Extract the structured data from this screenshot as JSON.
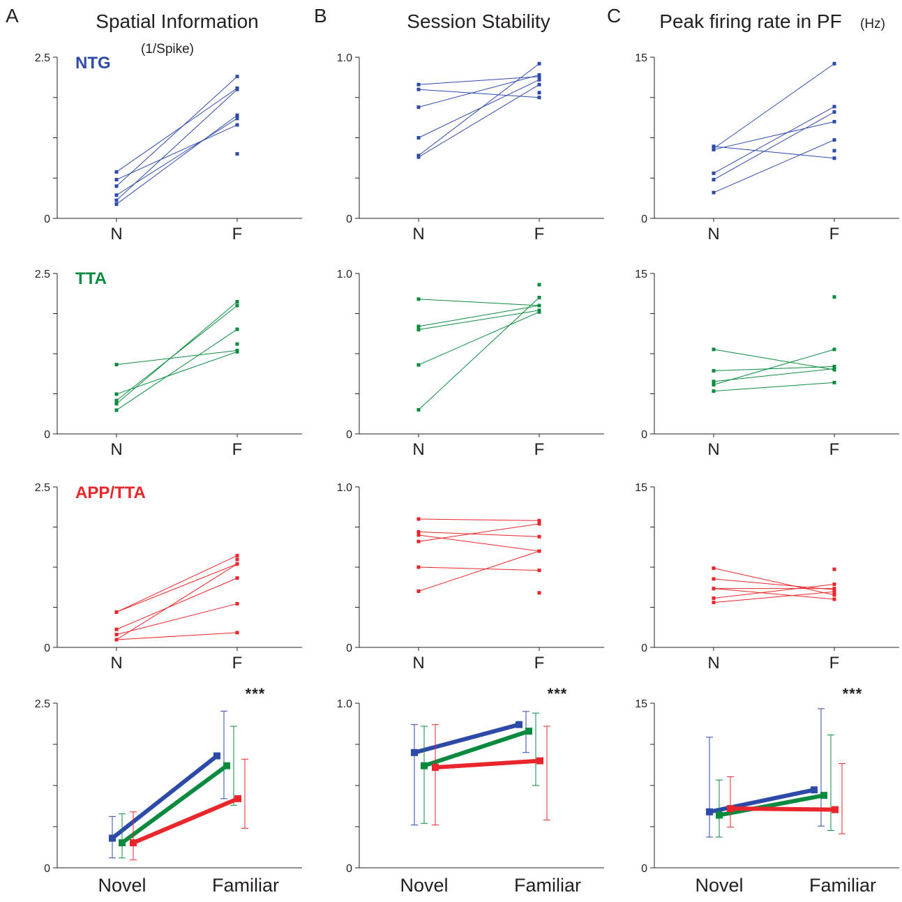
{
  "columns": [
    {
      "letter": "A",
      "title": "Spatial Information",
      "subtitle": "(1/Spike)"
    },
    {
      "letter": "B",
      "title": "Session Stability",
      "subtitle": ""
    },
    {
      "letter": "C",
      "title": "Peak firing rate in PF",
      "subtitle": "(Hz)"
    }
  ],
  "colors": {
    "NTG": "#2e4aa8",
    "TTA": "#0a8a3e",
    "APP/TTA": "#e8262b"
  },
  "group_labels": [
    "NTG",
    "TTA",
    "APP/TTA"
  ],
  "significance_label": "***",
  "chart_data": [
    {
      "type": "line",
      "column": "A",
      "group": "NTG",
      "color": "#2e4aa8",
      "categories": [
        "N",
        "F"
      ],
      "ylim": [
        0,
        2.5
      ],
      "yticks": [
        "0",
        "2.5"
      ],
      "pairs": [
        [
          0.22,
          1.6
        ],
        [
          0.28,
          2.0
        ],
        [
          0.36,
          1.55
        ],
        [
          0.5,
          2.2
        ],
        [
          0.6,
          1.45
        ],
        [
          0.72,
          2.02
        ]
      ],
      "unpaired_F": [
        1.0
      ]
    },
    {
      "type": "line",
      "column": "B",
      "group": "NTG",
      "color": "#2e4aa8",
      "categories": [
        "N",
        "F"
      ],
      "ylim": [
        0,
        1.0
      ],
      "yticks": [
        "0",
        "1.0"
      ],
      "pairs": [
        [
          0.38,
          0.83
        ],
        [
          0.39,
          0.96
        ],
        [
          0.5,
          0.86
        ],
        [
          0.69,
          0.89
        ],
        [
          0.8,
          0.75
        ],
        [
          0.83,
          0.88
        ]
      ],
      "unpaired_F": [
        0.78
      ]
    },
    {
      "type": "line",
      "column": "C",
      "group": "NTG",
      "color": "#2e4aa8",
      "categories": [
        "N",
        "F"
      ],
      "ylim": [
        0,
        15
      ],
      "yticks": [
        "0",
        "15"
      ],
      "pairs": [
        [
          2.4,
          7.3
        ],
        [
          3.6,
          9.9
        ],
        [
          4.2,
          10.4
        ],
        [
          6.5,
          14.4
        ],
        [
          6.7,
          5.6
        ],
        [
          6.4,
          9.0
        ]
      ],
      "unpaired_F": [
        6.3
      ]
    },
    {
      "type": "line",
      "column": "A",
      "group": "TTA",
      "color": "#0a8a3e",
      "categories": [
        "N",
        "F"
      ],
      "ylim": [
        0,
        2.5
      ],
      "yticks": [
        "0",
        "2.5"
      ],
      "pairs": [
        [
          0.37,
          1.63
        ],
        [
          0.47,
          2.06
        ],
        [
          0.52,
          2.0
        ],
        [
          0.62,
          1.28
        ],
        [
          1.08,
          1.3
        ]
      ],
      "unpaired_F": [
        1.4
      ]
    },
    {
      "type": "line",
      "column": "B",
      "group": "TTA",
      "color": "#0a8a3e",
      "categories": [
        "N",
        "F"
      ],
      "ylim": [
        0,
        1.0
      ],
      "yticks": [
        "0",
        "1.0"
      ],
      "pairs": [
        [
          0.15,
          0.85
        ],
        [
          0.43,
          0.76
        ],
        [
          0.65,
          0.77
        ],
        [
          0.67,
          0.8
        ],
        [
          0.84,
          0.8
        ]
      ],
      "unpaired_F": [
        0.93
      ]
    },
    {
      "type": "line",
      "column": "C",
      "group": "TTA",
      "color": "#0a8a3e",
      "categories": [
        "N",
        "F"
      ],
      "ylim": [
        0,
        15
      ],
      "yticks": [
        "0",
        "15"
      ],
      "pairs": [
        [
          4.0,
          4.8
        ],
        [
          4.6,
          7.9
        ],
        [
          4.9,
          6.1
        ],
        [
          5.9,
          6.3
        ],
        [
          7.9,
          6.0
        ]
      ],
      "unpaired_F": [
        12.8
      ]
    },
    {
      "type": "line",
      "column": "A",
      "group": "APP/TTA",
      "color": "#e8262b",
      "categories": [
        "N",
        "F"
      ],
      "ylim": [
        0,
        2.5
      ],
      "yticks": [
        "0",
        "2.5"
      ],
      "pairs": [
        [
          0.12,
          0.23
        ],
        [
          0.2,
          0.68
        ],
        [
          0.28,
          1.08
        ],
        [
          0.12,
          1.3
        ],
        [
          0.55,
          1.3
        ],
        [
          0.55,
          1.43
        ]
      ],
      "unpaired_F": [
        1.37
      ]
    },
    {
      "type": "line",
      "column": "B",
      "group": "APP/TTA",
      "color": "#e8262b",
      "categories": [
        "N",
        "F"
      ],
      "ylim": [
        0,
        1.0
      ],
      "yticks": [
        "0",
        "1.0"
      ],
      "pairs": [
        [
          0.35,
          0.6
        ],
        [
          0.5,
          0.48
        ],
        [
          0.66,
          0.77
        ],
        [
          0.7,
          0.6
        ],
        [
          0.72,
          0.69
        ],
        [
          0.8,
          0.79
        ]
      ],
      "unpaired_F": [
        0.34
      ]
    },
    {
      "type": "line",
      "column": "C",
      "group": "APP/TTA",
      "color": "#e8262b",
      "categories": [
        "N",
        "F"
      ],
      "ylim": [
        0,
        15
      ],
      "yticks": [
        "0",
        "15"
      ],
      "pairs": [
        [
          4.2,
          5.2
        ],
        [
          4.6,
          5.9
        ],
        [
          5.5,
          5.5
        ],
        [
          6.4,
          5.4
        ],
        [
          5.5,
          4.5
        ],
        [
          7.4,
          4.9
        ]
      ],
      "unpaired_F": [
        7.3
      ]
    },
    {
      "type": "line",
      "column": "A",
      "group": "summary",
      "categories": [
        "Novel",
        "Familiar"
      ],
      "ylim": [
        0,
        2.5
      ],
      "yticks": [
        "0",
        "2.5"
      ],
      "series": [
        {
          "name": "NTG",
          "color": "#2e4aa8",
          "values": [
            0.45,
            1.7
          ],
          "err_low": [
            0.15,
            1.05
          ],
          "err_high": [
            0.78,
            2.38
          ]
        },
        {
          "name": "TTA",
          "color": "#0a8a3e",
          "values": [
            0.38,
            1.55
          ],
          "err_low": [
            0.15,
            0.95
          ],
          "err_high": [
            0.82,
            2.15
          ]
        },
        {
          "name": "APP/TTA",
          "color": "#e8262b",
          "values": [
            0.38,
            1.05
          ],
          "err_low": [
            0.12,
            0.6
          ],
          "err_high": [
            0.85,
            1.65
          ]
        }
      ]
    },
    {
      "type": "line",
      "column": "B",
      "group": "summary",
      "categories": [
        "Novel",
        "Familiar"
      ],
      "ylim": [
        0,
        1.0
      ],
      "yticks": [
        "0",
        "1.0"
      ],
      "series": [
        {
          "name": "NTG",
          "color": "#2e4aa8",
          "values": [
            0.7,
            0.87
          ],
          "err_low": [
            0.26,
            0.7
          ],
          "err_high": [
            0.87,
            0.95
          ]
        },
        {
          "name": "TTA",
          "color": "#0a8a3e",
          "values": [
            0.62,
            0.83
          ],
          "err_low": [
            0.27,
            0.5
          ],
          "err_high": [
            0.86,
            0.94
          ]
        },
        {
          "name": "APP/TTA",
          "color": "#e8262b",
          "values": [
            0.61,
            0.65
          ],
          "err_low": [
            0.26,
            0.29
          ],
          "err_high": [
            0.87,
            0.86
          ]
        }
      ]
    },
    {
      "type": "line",
      "column": "C",
      "group": "summary",
      "categories": [
        "Novel",
        "Familiar"
      ],
      "ylim": [
        0,
        15
      ],
      "yticks": [
        "0",
        "15"
      ],
      "series": [
        {
          "name": "NTG",
          "color": "#2e4aa8",
          "values": [
            5.1,
            7.1
          ],
          "err_low": [
            2.8,
            3.8
          ],
          "err_high": [
            11.9,
            14.5
          ]
        },
        {
          "name": "TTA",
          "color": "#0a8a3e",
          "values": [
            4.8,
            6.6
          ],
          "err_low": [
            2.8,
            3.4
          ],
          "err_high": [
            8.0,
            12.1
          ]
        },
        {
          "name": "APP/TTA",
          "color": "#e8262b",
          "values": [
            5.4,
            5.3
          ],
          "err_low": [
            3.7,
            3.1
          ],
          "err_high": [
            8.3,
            9.5
          ]
        }
      ]
    }
  ]
}
